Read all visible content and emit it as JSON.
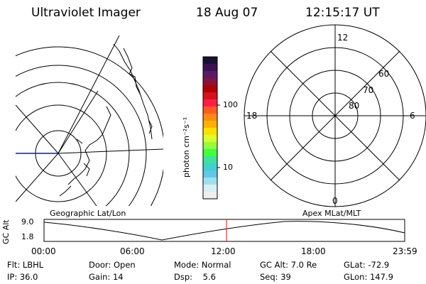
{
  "header": {
    "title": "Ultraviolet Imager",
    "date": "18 Aug 07",
    "time": "12:15:17 UT"
  },
  "colorbar": {
    "unit_label": "photon cm⁻²s⁻¹",
    "ticks": [
      "100",
      "10"
    ],
    "colors": [
      "#1a1033",
      "#3b1250",
      "#5a1a66",
      "#8a1238",
      "#b00000",
      "#d81020",
      "#ff2040",
      "#ff5a20",
      "#ff8a10",
      "#ffb000",
      "#ffe000",
      "#d8ff30",
      "#90ff40",
      "#40ff40",
      "#40e0a0",
      "#40d0d0",
      "#60c8e8",
      "#a0e0ee",
      "#d8f0f4",
      "#eeeeee"
    ]
  },
  "left_map": {
    "caption": "Geographic Lat/Lon"
  },
  "right_map": {
    "caption": "Apex MLat/MLT",
    "mlt_labels": {
      "top": "12",
      "left": "18",
      "right": "6",
      "bottom": "0"
    },
    "mlat_labels": [
      "60",
      "70",
      "80"
    ]
  },
  "timeline": {
    "axis_label": "GC Alt",
    "y_ticks": [
      "9.0",
      "1.8"
    ],
    "x_ticks": [
      "00:00",
      "06:00",
      "12:00",
      "18:00",
      "23:59"
    ],
    "marker_color": "#ff0000"
  },
  "status": {
    "row1": [
      {
        "key": "Flt:",
        "value": "LBHL"
      },
      {
        "key": "Door:",
        "value": "Open"
      },
      {
        "key": "Mode:",
        "value": "Normal"
      },
      {
        "key": "GC Alt:",
        "value": "7.0 Re"
      },
      {
        "key": "GLat:",
        "value": "-72.9"
      }
    ],
    "row2": [
      {
        "key": "IP:",
        "value": "36.0"
      },
      {
        "key": "Gain:",
        "value": "14"
      },
      {
        "key": "Dsp:",
        "value": "5.6"
      },
      {
        "key": "Seq:",
        "value": "39"
      },
      {
        "key": "GLon:",
        "value": "147.9"
      }
    ]
  }
}
